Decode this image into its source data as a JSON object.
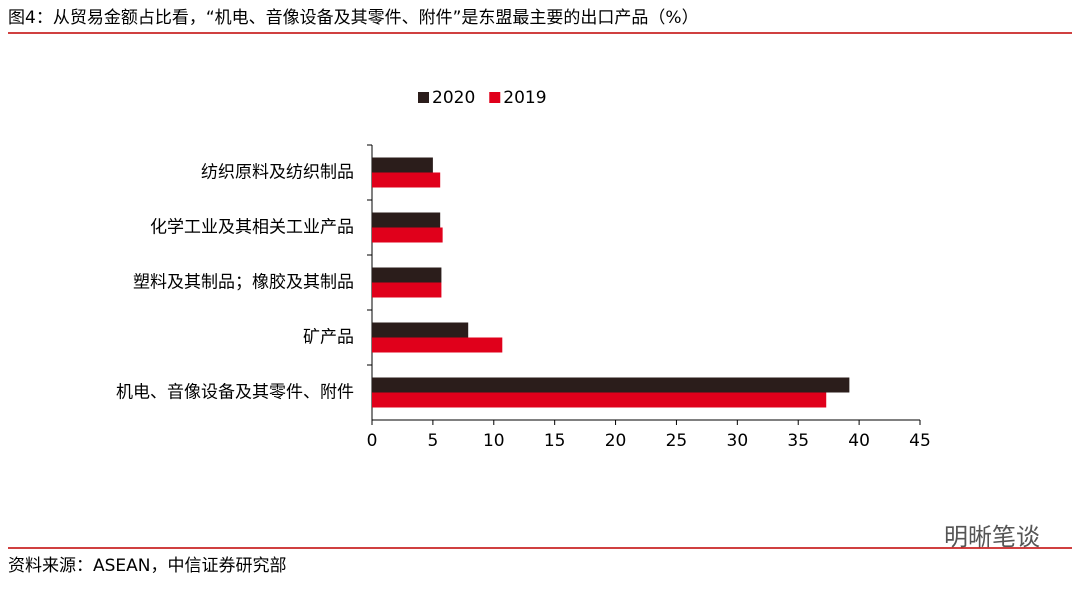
{
  "chart_data": {
    "type": "bar",
    "orientation": "horizontal",
    "title": "图4：从贸易金额占比看，“机电、音像设备及其零件、附件”是东盟最主要的出口产品（%）",
    "source": "资料来源：ASEAN，中信证券研究部",
    "watermark": "明晰笔谈",
    "categories": [
      "纺织原料及纺织制品",
      "化学工业及其相关工业产品",
      "塑料及其制品；橡胶及其制品",
      "矿产品",
      "机电、音像设备及其零件、附件"
    ],
    "series": [
      {
        "name": "2020",
        "color": "#2b1d1b",
        "values": [
          5.0,
          5.6,
          5.7,
          7.9,
          39.2
        ]
      },
      {
        "name": "2019",
        "color": "#e0001b",
        "values": [
          5.6,
          5.8,
          5.7,
          10.7,
          37.3
        ]
      }
    ],
    "xlim": [
      0,
      45
    ],
    "xticks": [
      0,
      5,
      10,
      15,
      20,
      25,
      30,
      35,
      40,
      45
    ],
    "legend": "top",
    "accent_color": "#c00000"
  }
}
